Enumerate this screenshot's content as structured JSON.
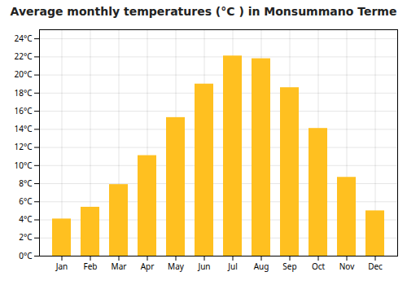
{
  "chart_data": {
    "type": "bar",
    "title": "Average monthly temperatures (°C ) in Monsummano Terme",
    "categories": [
      "Jan",
      "Feb",
      "Mar",
      "Apr",
      "May",
      "Jun",
      "Jul",
      "Aug",
      "Sep",
      "Oct",
      "Nov",
      "Dec"
    ],
    "values": [
      4.1,
      5.4,
      7.9,
      11.1,
      15.3,
      19.0,
      22.1,
      21.8,
      18.6,
      14.1,
      8.7,
      5.0
    ],
    "color": "#FFC020",
    "ylim": [
      0,
      25
    ],
    "yticks": [
      {
        "value": 0,
        "label": "0°C"
      },
      {
        "value": 2,
        "label": "2°C"
      },
      {
        "value": 4,
        "label": "4°C"
      },
      {
        "value": 6,
        "label": "6°C"
      },
      {
        "value": 8,
        "label": "8°C"
      },
      {
        "value": 10,
        "label": "10°C"
      },
      {
        "value": 12,
        "label": "12°C"
      },
      {
        "value": 14,
        "label": "14°C"
      },
      {
        "value": 16,
        "label": "16°C"
      },
      {
        "value": 18,
        "label": "18°C"
      },
      {
        "value": 20,
        "label": "20°C"
      },
      {
        "value": 22,
        "label": "22°C"
      },
      {
        "value": 24,
        "label": "24°C"
      }
    ],
    "grid": true
  }
}
